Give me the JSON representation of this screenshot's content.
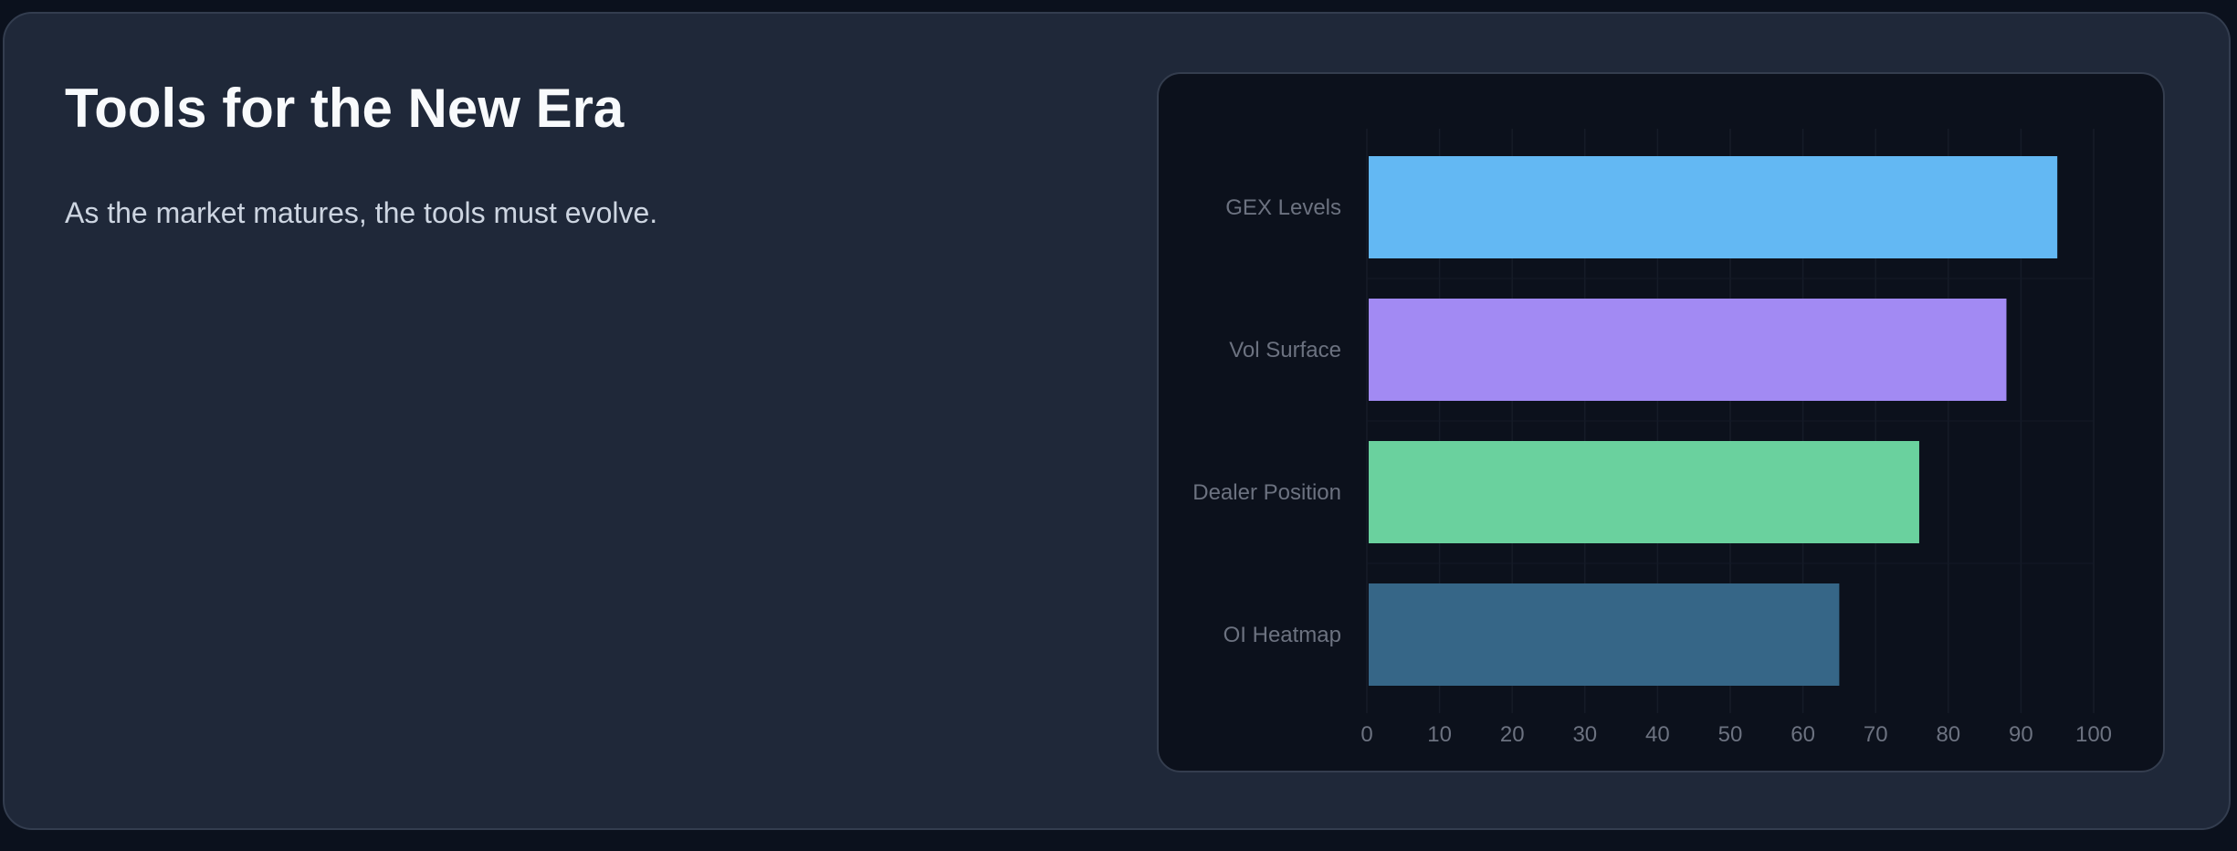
{
  "card": {
    "title": "Tools for the New Era",
    "subtitle": "As the market matures, the tools must evolve."
  },
  "chart_data": {
    "type": "bar",
    "orientation": "horizontal",
    "categories": [
      "GEX Levels",
      "Vol Surface",
      "Dealer Position",
      "OI Heatmap"
    ],
    "values": [
      95,
      88,
      76,
      65
    ],
    "colors": [
      "#63b8f3",
      "#a28af3",
      "#6ad19e",
      "#366687"
    ],
    "xlim": [
      0,
      100
    ],
    "xticks": [
      "0",
      "10",
      "20",
      "30",
      "40",
      "50",
      "60",
      "70",
      "80",
      "90",
      "100"
    ],
    "title": "",
    "xlabel": "",
    "ylabel": "",
    "grid": true,
    "legend": "none"
  }
}
